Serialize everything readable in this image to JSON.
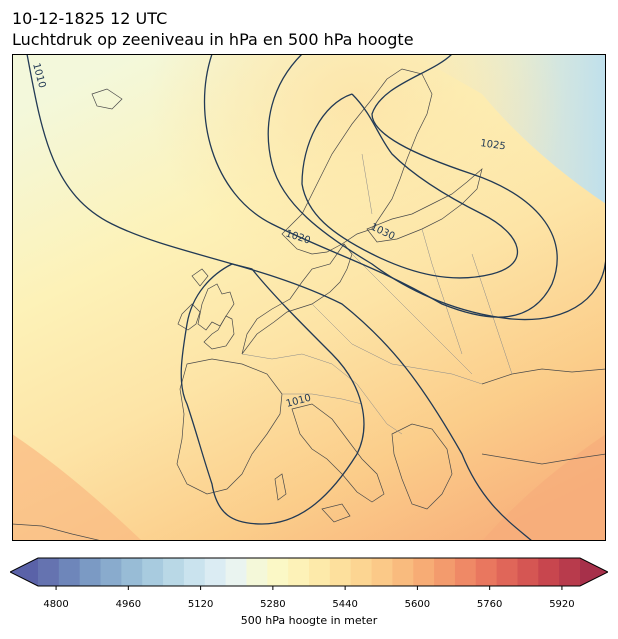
{
  "header": {
    "datetime": "10-12-1825 12 UTC",
    "subtitle": "Luchtdruk op zeeniveau in hPa en 500 hPa hoogte"
  },
  "map": {
    "region": "Europe",
    "fill_field": "500 hPa hoogte",
    "contour_field": "Luchtdruk op zeeniveau",
    "isobars": [
      {
        "value": "1010"
      },
      {
        "value": "1010"
      },
      {
        "value": "1020"
      },
      {
        "value": "1025"
      },
      {
        "value": "1030"
      }
    ]
  },
  "colorbar": {
    "label": "500 hPa hoogte in meter",
    "ticks": [
      "4800",
      "4960",
      "5120",
      "5280",
      "5440",
      "5600",
      "5760",
      "5920"
    ],
    "min": 4760,
    "max": 5960,
    "step": 40,
    "extend": "both",
    "colors": [
      "#5a62a8",
      "#6573b0",
      "#6e86ba",
      "#7b9ac4",
      "#89abcd",
      "#98bcd6",
      "#a8cbdf",
      "#b9d8e6",
      "#cae3ee",
      "#dbecf3",
      "#eaf4f0",
      "#f4f8d9",
      "#fbf8c6",
      "#fdf2b8",
      "#fdeaaa",
      "#fde09d",
      "#fcd592",
      "#fbc988",
      "#f9bb7e",
      "#f7ac75",
      "#f39b6d",
      "#ef8966",
      "#e9775f",
      "#e06659",
      "#d55653",
      "#c8464e",
      "#b83b4c",
      "#a7304a"
    ]
  }
}
